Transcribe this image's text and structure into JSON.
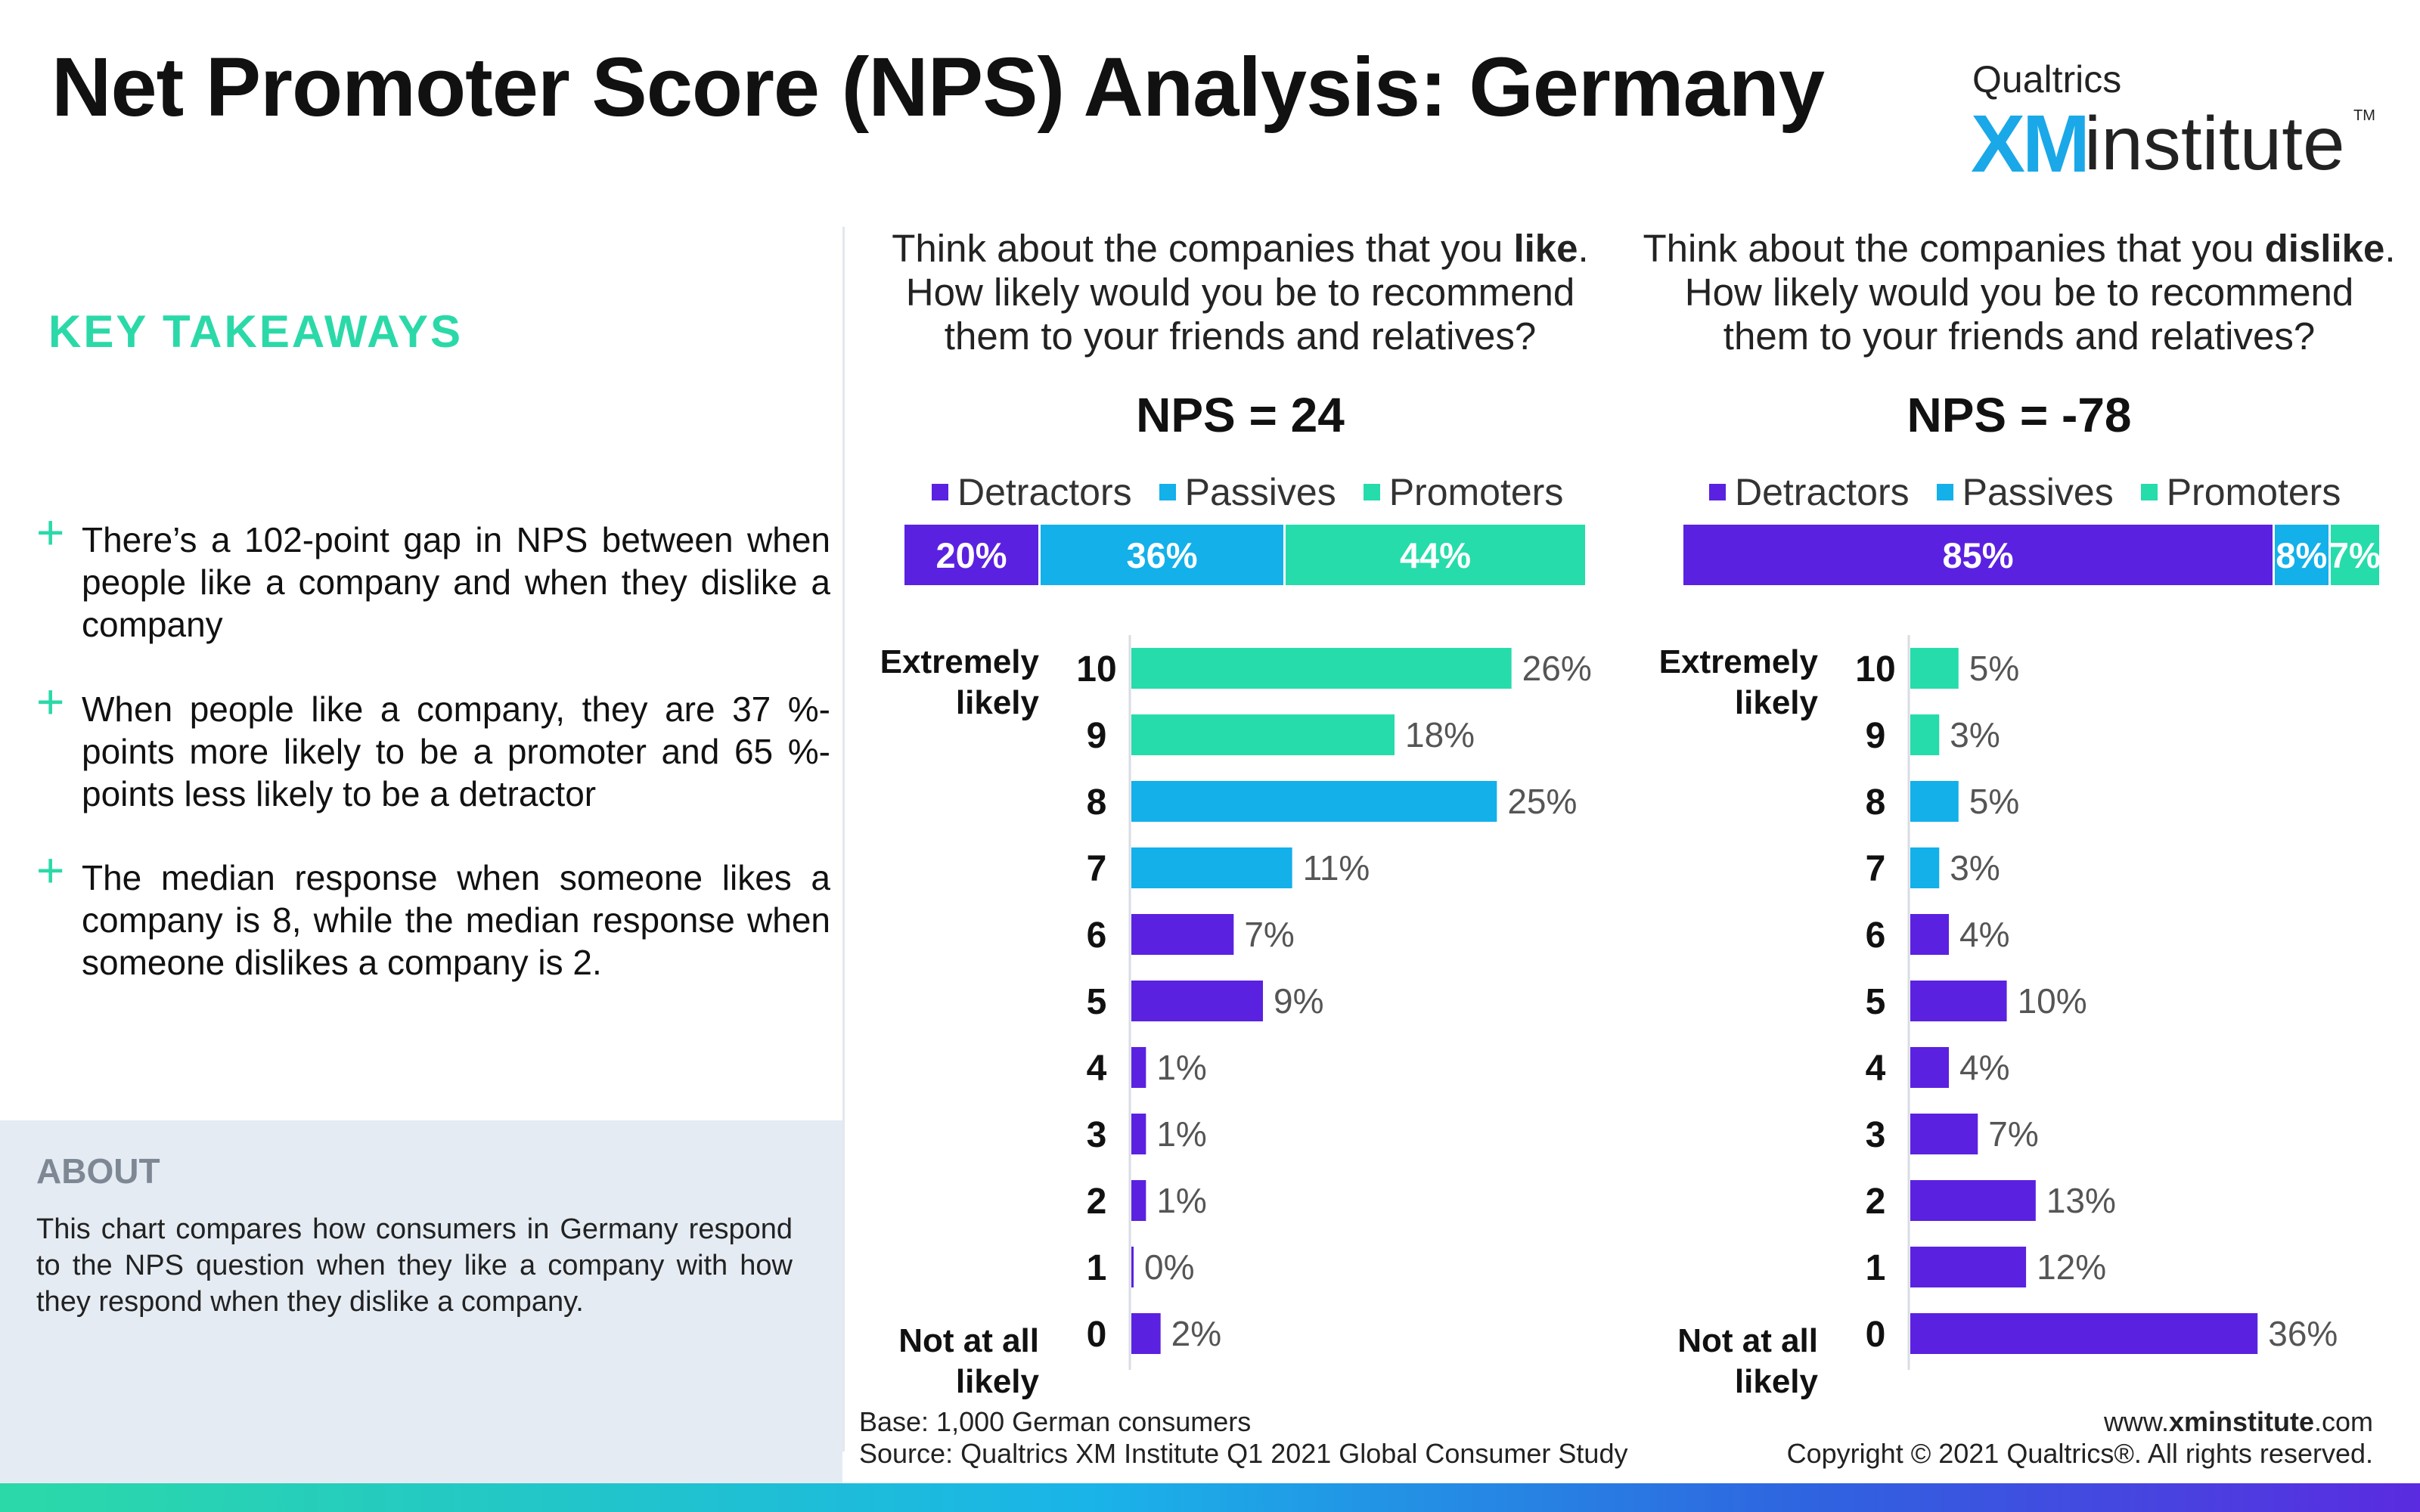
{
  "title": "Net Promoter Score (NPS) Analysis: Germany",
  "logo": {
    "top": "Qualtrics",
    "xm": "XM",
    "institute": "institute",
    "tm": "TM"
  },
  "takeaways": {
    "heading": "KEY TAKEAWAYS",
    "items": [
      "There’s a 102-point gap in NPS between when people like a company and when they dislike a company",
      "When people like a company, they are 37 %-points more likely to be a promoter and 65 %-points less likely to be a detractor",
      "The median response when someone likes a company is 8, while the median response when someone dislikes a company is 2."
    ]
  },
  "about": {
    "heading": "ABOUT",
    "text": "This chart compares how consumers in Germany respond to the NPS question when they like a company with how they respond when they dislike a company."
  },
  "colors": {
    "detractors": "#5b21e0",
    "passives": "#13b0ea",
    "promoters": "#25dcaa",
    "accent": "#2bd9a8"
  },
  "legend": {
    "detractors": "Detractors",
    "passives": "Passives",
    "promoters": "Promoters"
  },
  "scale_labels": {
    "top_line1": "Extremely",
    "top_line2": "likely",
    "bottom_line1": "Not at all",
    "bottom_line2": "likely"
  },
  "chart_data": [
    {
      "type": "bar",
      "question": {
        "line1_pre": "Think about the companies that you ",
        "line1_bold": "like",
        "line1_post": ".",
        "line2": "How likely would you be to recommend",
        "line3": "them to your friends and relatives?"
      },
      "nps_label": "NPS = 24",
      "stacked": {
        "series": [
          {
            "name": "Detractors",
            "value": 20,
            "label": "20%"
          },
          {
            "name": "Passives",
            "value": 36,
            "label": "36%"
          },
          {
            "name": "Promoters",
            "value": 44,
            "label": "44%"
          }
        ]
      },
      "categories": [
        "10",
        "9",
        "8",
        "7",
        "6",
        "5",
        "4",
        "3",
        "2",
        "1",
        "0"
      ],
      "values": [
        26,
        18,
        25,
        11,
        7,
        9,
        1,
        1,
        1,
        0,
        2
      ],
      "value_labels": [
        "26%",
        "18%",
        "25%",
        "11%",
        "7%",
        "9%",
        "1%",
        "1%",
        "1%",
        "0%",
        "2%"
      ],
      "groups": [
        "Promoters",
        "Promoters",
        "Passives",
        "Passives",
        "Detractors",
        "Detractors",
        "Detractors",
        "Detractors",
        "Detractors",
        "Detractors",
        "Detractors"
      ],
      "xlim": [
        0,
        27
      ]
    },
    {
      "type": "bar",
      "question": {
        "line1_pre": "Think about the companies that you ",
        "line1_bold": "dislike",
        "line1_post": ".",
        "line2": "How likely would you be to recommend",
        "line3": "them to your friends and relatives?"
      },
      "nps_label": "NPS = -78",
      "stacked": {
        "series": [
          {
            "name": "Detractors",
            "value": 85,
            "label": "85%"
          },
          {
            "name": "Passives",
            "value": 8,
            "label": "8%"
          },
          {
            "name": "Promoters",
            "value": 7,
            "label": "7%"
          }
        ]
      },
      "categories": [
        "10",
        "9",
        "8",
        "7",
        "6",
        "5",
        "4",
        "3",
        "2",
        "1",
        "0"
      ],
      "values": [
        5,
        3,
        5,
        3,
        4,
        10,
        4,
        7,
        13,
        12,
        36
      ],
      "value_labels": [
        "5%",
        "3%",
        "5%",
        "3%",
        "4%",
        "10%",
        "4%",
        "7%",
        "13%",
        "12%",
        "36%"
      ],
      "groups": [
        "Promoters",
        "Promoters",
        "Passives",
        "Passives",
        "Detractors",
        "Detractors",
        "Detractors",
        "Detractors",
        "Detractors",
        "Detractors",
        "Detractors"
      ],
      "xlim": [
        0,
        37
      ]
    }
  ],
  "footer": {
    "base": "Base: 1,000 German consumers",
    "source": "Source: Qualtrics XM Institute Q1 2021 Global Consumer Study",
    "url_pre": "www.",
    "url_bold": "xminstitute",
    "url_post": ".com",
    "copyright": "Copyright © 2021 Qualtrics®. All rights reserved."
  }
}
